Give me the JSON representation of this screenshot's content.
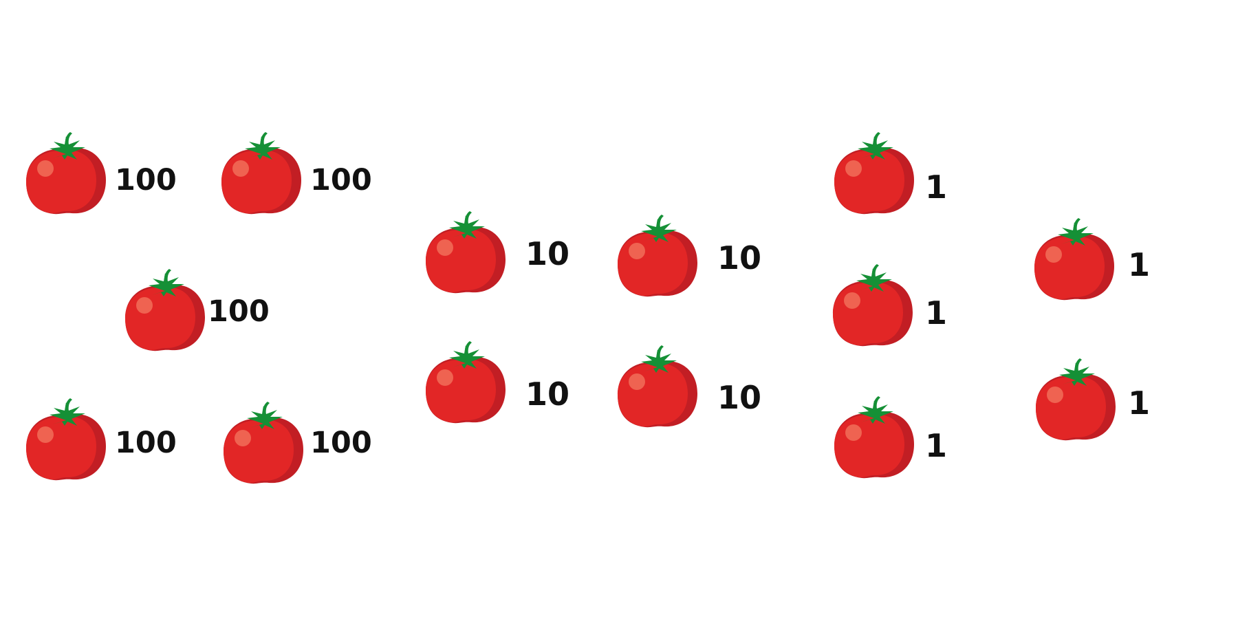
{
  "colors": {
    "tomato_body": "#e22626",
    "tomato_shade": "#c21e24",
    "tomato_highlight": "#ef6351",
    "stem": "#159036",
    "label_text": "#111111",
    "background": "#ffffff"
  },
  "icon": "tomato-icon",
  "groups": {
    "hundreds": {
      "labels": [
        "100",
        "100",
        "100",
        "100",
        "100"
      ]
    },
    "tens": {
      "labels": [
        "10",
        "10",
        "10",
        "10"
      ]
    },
    "ones": {
      "labels": [
        "1",
        "1",
        "1",
        "1",
        "1"
      ]
    }
  }
}
